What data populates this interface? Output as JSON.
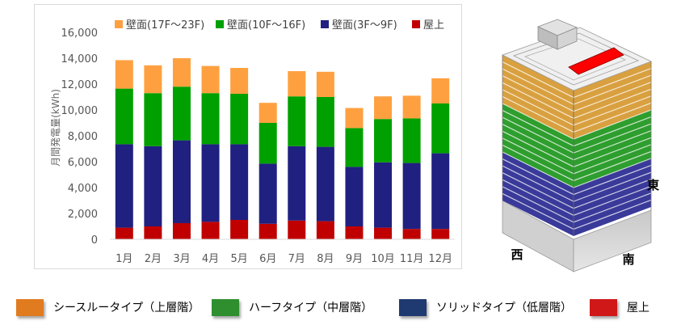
{
  "chart_data": {
    "type": "bar",
    "stacked": true,
    "categories": [
      "1月",
      "2月",
      "3月",
      "4月",
      "5月",
      "6月",
      "7月",
      "8月",
      "9月",
      "10月",
      "11月",
      "12月"
    ],
    "series": [
      {
        "name": "屋上",
        "color": "#c00000",
        "values": [
          900,
          1000,
          1250,
          1350,
          1500,
          1200,
          1450,
          1400,
          1000,
          900,
          800,
          800
        ]
      },
      {
        "name": "壁面(3F～9F)",
        "color": "#202080",
        "values": [
          6450,
          6200,
          6400,
          6000,
          5850,
          4650,
          5750,
          5750,
          4600,
          5050,
          5100,
          5850
        ]
      },
      {
        "name": "壁面(10F～16F)",
        "color": "#00a000",
        "values": [
          4300,
          4100,
          4150,
          3950,
          3900,
          3150,
          3850,
          3850,
          3000,
          3350,
          3450,
          3850
        ]
      },
      {
        "name": "壁面(17F～23F)",
        "color": "#ffa040",
        "values": [
          2200,
          2150,
          2200,
          2100,
          2000,
          1550,
          1950,
          1950,
          1550,
          1750,
          1750,
          1950
        ]
      }
    ],
    "legend_order": [
      "壁面(17F～23F)",
      "壁面(10F～16F)",
      "壁面(3F～9F)",
      "屋上"
    ],
    "ylabel": "月間発電量(kWh)",
    "xlabel": "",
    "ylim": [
      0,
      16000
    ],
    "yticks": [
      0,
      2000,
      4000,
      6000,
      8000,
      10000,
      12000,
      14000,
      16000
    ],
    "ytick_labels": [
      "0",
      "2,000",
      "4,000",
      "6,000",
      "8,000",
      "10,000",
      "12,000",
      "14,000",
      "16,000"
    ],
    "grid": false,
    "legend_position": "top"
  },
  "building": {
    "direction_labels": {
      "east": "東",
      "west": "西",
      "south": "南"
    },
    "bands": [
      {
        "name": "シースルータイプ(上層階)",
        "color": "#d9a040"
      },
      {
        "name": "ハーフタイプ(中層階)",
        "color": "#2e9e2e"
      },
      {
        "name": "ソリッドタイプ(低層階)",
        "color": "#3a3a9a"
      }
    ],
    "roof_panel_color": "#ff0000"
  },
  "bottom_legend": [
    {
      "label": "シースルータイプ（上層階）",
      "color": "#e07b20"
    },
    {
      "label": "ハーフタイプ（中層階）",
      "color": "#2f8f2f"
    },
    {
      "label": "ソリッドタイプ（低層階）",
      "color": "#1f3a70"
    },
    {
      "label": "屋上",
      "color": "#d01818"
    }
  ]
}
